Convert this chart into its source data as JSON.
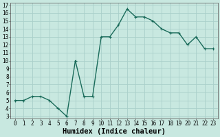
{
  "x": [
    0,
    1,
    2,
    3,
    4,
    5,
    6,
    7,
    8,
    9,
    10,
    11,
    12,
    13,
    14,
    15,
    16,
    17,
    18,
    19,
    20,
    21,
    22,
    23
  ],
  "y": [
    5.0,
    5.0,
    5.5,
    5.5,
    5.0,
    4.0,
    3.0,
    10.0,
    5.5,
    5.5,
    13.0,
    13.0,
    14.5,
    16.5,
    15.5,
    15.5,
    15.0,
    14.0,
    13.5,
    13.5,
    12.0,
    13.0,
    11.5,
    11.5
  ],
  "line_color": "#1a6b5a",
  "bg_color": "#c8e8e0",
  "grid_color": "#aacfca",
  "xlabel": "Humidex (Indice chaleur)",
  "ylim": [
    3,
    17
  ],
  "xlim_min": -0.5,
  "xlim_max": 23.5,
  "yticks": [
    3,
    4,
    5,
    6,
    7,
    8,
    9,
    10,
    11,
    12,
    13,
    14,
    15,
    16,
    17
  ],
  "xticks": [
    0,
    1,
    2,
    3,
    4,
    5,
    6,
    7,
    8,
    9,
    10,
    11,
    12,
    13,
    14,
    15,
    16,
    17,
    18,
    19,
    20,
    21,
    22,
    23
  ],
  "tick_fontsize": 5.5,
  "xlabel_fontsize": 7.5,
  "marker": "+",
  "markersize": 3.5,
  "linewidth": 1.0
}
